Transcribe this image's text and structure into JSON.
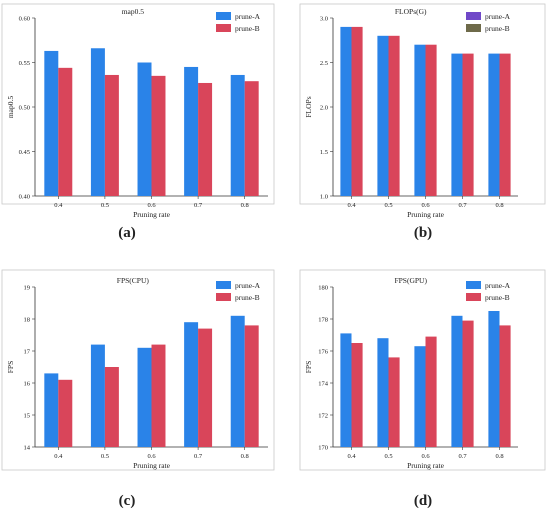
{
  "colors": {
    "prune_a": "#2a83e8",
    "prune_b": "#d9455a",
    "legend_prune_b_alt": "#6e6a4a",
    "legend_prune_a_alt": "#7048c8"
  },
  "chart_data": [
    {
      "type": "bar",
      "title": "map0.5",
      "xlabel": "Pruning rate",
      "ylabel": "map0.5",
      "categories": [
        "0.4",
        "0.5",
        "0.6",
        "0.7",
        "0.8"
      ],
      "ylim": [
        0.4,
        0.6
      ],
      "yticks": [
        "0.40",
        "0.45",
        "0.50",
        "0.55",
        "0.60"
      ],
      "tick_values": [
        0.4,
        0.45,
        0.5,
        0.55,
        0.6
      ],
      "series": [
        {
          "name": "prune-A",
          "values": [
            0.563,
            0.566,
            0.55,
            0.545,
            0.536
          ]
        },
        {
          "name": "prune-B",
          "values": [
            0.544,
            0.536,
            0.535,
            0.527,
            0.529
          ]
        }
      ],
      "legend": "top-right",
      "legend_swatches": [
        "prune_a",
        "prune_b"
      ],
      "panel_label": "(a)"
    },
    {
      "type": "bar",
      "title": "FLOPs(G)",
      "xlabel": "Pruning rate",
      "ylabel": "FLOPs",
      "categories": [
        "0.4",
        "0.5",
        "0.6",
        "0.7",
        "0.8"
      ],
      "ylim": [
        1.0,
        3.0
      ],
      "yticks": [
        "1.0",
        "1.5",
        "2.0",
        "2.5",
        "3.0"
      ],
      "tick_values": [
        1.0,
        1.5,
        2.0,
        2.5,
        3.0
      ],
      "series": [
        {
          "name": "prune-A",
          "values": [
            2.9,
            2.8,
            2.7,
            2.6,
            2.6
          ]
        },
        {
          "name": "prune-B",
          "values": [
            2.9,
            2.8,
            2.7,
            2.6,
            2.6
          ]
        }
      ],
      "legend": "top-right",
      "legend_swatches": [
        "legend_prune_a_alt",
        "legend_prune_b_alt"
      ],
      "panel_label": "(b)"
    },
    {
      "type": "bar",
      "title": "FPS(CPU)",
      "xlabel": "Pruning rate",
      "ylabel": "FPS",
      "categories": [
        "0.4",
        "0.5",
        "0.6",
        "0.7",
        "0.8"
      ],
      "ylim": [
        14,
        19
      ],
      "yticks": [
        "14",
        "15",
        "16",
        "17",
        "18",
        "19"
      ],
      "tick_values": [
        14,
        15,
        16,
        17,
        18,
        19
      ],
      "series": [
        {
          "name": "prune-A",
          "values": [
            16.3,
            17.2,
            17.1,
            17.9,
            18.1
          ]
        },
        {
          "name": "prune-B",
          "values": [
            16.1,
            16.5,
            17.2,
            17.7,
            17.8
          ]
        }
      ],
      "legend": "top-right",
      "legend_swatches": [
        "prune_a",
        "prune_b"
      ],
      "panel_label": "(c)"
    },
    {
      "type": "bar",
      "title": "FPS(GPU)",
      "xlabel": "Pruning rate",
      "ylabel": "FPS",
      "categories": [
        "0.4",
        "0.5",
        "0.6",
        "0.7",
        "0.8"
      ],
      "ylim": [
        170,
        180
      ],
      "yticks": [
        "170",
        "172",
        "174",
        "176",
        "178",
        "180"
      ],
      "tick_values": [
        170,
        172,
        174,
        176,
        178,
        180
      ],
      "series": [
        {
          "name": "prune-A",
          "values": [
            177.1,
            176.8,
            176.3,
            178.2,
            178.5
          ]
        },
        {
          "name": "prune-B",
          "values": [
            176.5,
            175.6,
            176.9,
            177.9,
            177.6
          ]
        }
      ],
      "legend": "top-right",
      "legend_swatches": [
        "prune_a",
        "prune_b"
      ],
      "panel_label": "(d)"
    }
  ]
}
